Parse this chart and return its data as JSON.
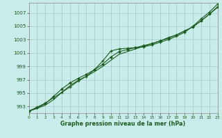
{
  "bg_color": "#c8ecea",
  "grid_color": "#a0c8c8",
  "line_color": "#1a5c1a",
  "xlim": [
    0,
    23
  ],
  "ylim": [
    992.0,
    1008.5
  ],
  "yticks": [
    993,
    995,
    997,
    999,
    1001,
    1003,
    1005,
    1007
  ],
  "xticks": [
    0,
    1,
    2,
    3,
    4,
    5,
    6,
    7,
    8,
    9,
    10,
    11,
    12,
    13,
    14,
    15,
    16,
    17,
    18,
    19,
    20,
    21,
    22,
    23
  ],
  "xlabel": "Graphe pression niveau de la mer (hPa)",
  "series_plus": [
    992.3,
    992.9,
    993.5,
    994.3,
    995.1,
    995.9,
    996.8,
    997.5,
    998.5,
    999.8,
    1001.3,
    1001.6,
    1001.7,
    1001.8,
    1001.9,
    1002.2,
    1002.6,
    1003.0,
    1003.5,
    1004.1,
    1005.0,
    1006.1,
    1007.1,
    1008.3
  ],
  "series_diamond": [
    992.3,
    992.8,
    993.4,
    994.5,
    995.6,
    996.5,
    997.2,
    997.8,
    998.5,
    999.3,
    1000.4,
    1001.2,
    1001.5,
    1001.8,
    1002.1,
    1002.4,
    1002.8,
    1003.2,
    1003.7,
    1004.3,
    1004.9,
    1005.8,
    1006.8,
    1007.9
  ],
  "series_plain": [
    992.3,
    992.7,
    993.2,
    994.0,
    995.1,
    996.1,
    996.9,
    997.5,
    998.2,
    999.0,
    999.9,
    1000.8,
    1001.2,
    1001.6,
    1002.0,
    1002.4,
    1002.8,
    1003.3,
    1003.7,
    1004.3,
    1004.9,
    1005.8,
    1006.8,
    1007.8
  ]
}
